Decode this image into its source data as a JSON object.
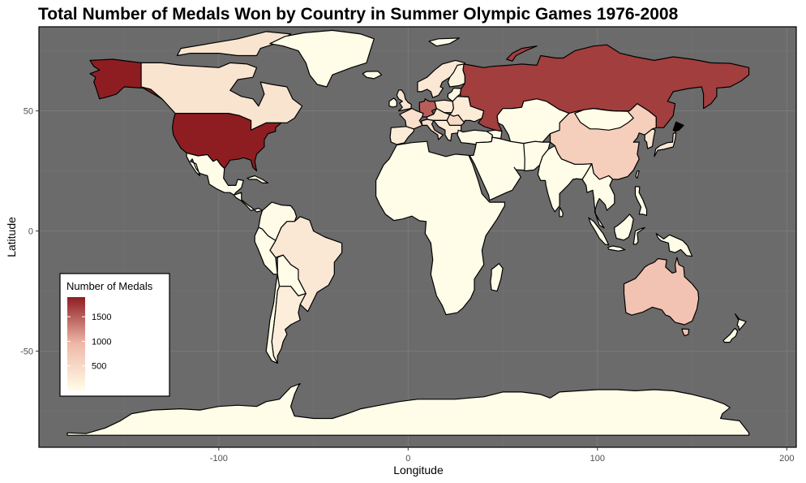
{
  "chart_data": {
    "type": "choropleth",
    "title": "Total Number of Medals Won by Country in Summer Olympic Games 1976-2008",
    "xlabel": "Longitude",
    "ylabel": "Latitude",
    "xlim": [
      -195,
      205
    ],
    "ylim": [
      -90,
      85
    ],
    "x_ticks": [
      -100,
      0,
      100,
      200
    ],
    "x_tick_labels": [
      "-100",
      "0",
      "100",
      "200"
    ],
    "y_ticks": [
      -50,
      0,
      50
    ],
    "y_tick_labels": [
      "-50",
      "0",
      "50"
    ],
    "grid": true,
    "background_color": "#6b6b6b",
    "legend": {
      "title": "Number of Medals",
      "placement": "bottom-left",
      "min": 0,
      "max": 1900,
      "breaks": [
        500,
        1000,
        1500
      ],
      "break_labels": [
        "500",
        "1000",
        "1500"
      ],
      "color_low": "#fffde8",
      "color_high": "#8e1d22"
    },
    "regions": [
      {
        "name": "United States",
        "value": 1900
      },
      {
        "name": "Alaska",
        "value": 1900
      },
      {
        "name": "Russia",
        "value": 1700
      },
      {
        "name": "Germany",
        "value": 1500
      },
      {
        "name": "Australia",
        "value": 800
      },
      {
        "name": "China",
        "value": 650
      },
      {
        "name": "Romania",
        "value": 500
      },
      {
        "name": "Canada",
        "value": 350
      },
      {
        "name": "Brazil",
        "value": 300
      },
      {
        "name": "Argentina",
        "value": 200
      },
      {
        "name": "France",
        "value": 400
      },
      {
        "name": "Italy",
        "value": 400
      },
      {
        "name": "Greenland",
        "value": 0
      },
      {
        "name": "Africa",
        "value": 0
      },
      {
        "name": "Middle East",
        "value": 0
      },
      {
        "name": "Central Asia",
        "value": 0
      },
      {
        "name": "India",
        "value": 0
      },
      {
        "name": "Antarctica",
        "value": 0
      },
      {
        "name": "Mexico",
        "value": 0
      }
    ]
  }
}
